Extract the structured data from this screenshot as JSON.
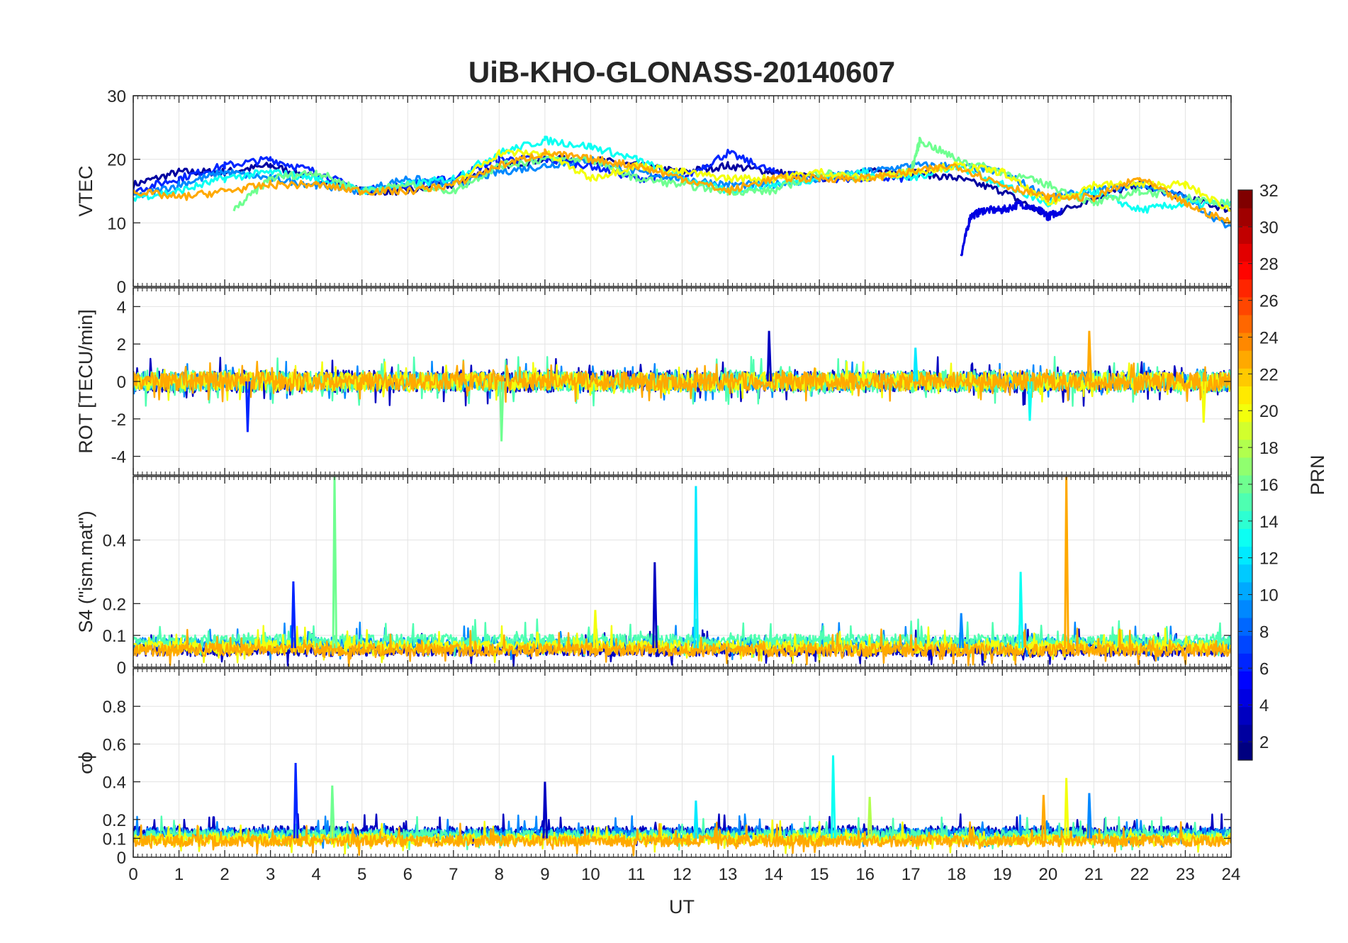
{
  "chart_data": {
    "type": "line",
    "title": "UiB-KHO-GLONASS-20140607",
    "xlabel": "UT",
    "xlim": [
      0,
      24
    ],
    "xticks": [
      "0",
      "1",
      "2",
      "3",
      "4",
      "5",
      "6",
      "7",
      "8",
      "9",
      "10",
      "11",
      "12",
      "13",
      "14",
      "15",
      "16",
      "17",
      "18",
      "19",
      "20",
      "21",
      "22",
      "23",
      "24"
    ],
    "grid": true,
    "colorbar": {
      "label": "PRN",
      "range": [
        1,
        32
      ],
      "colormap": "jet",
      "ticks": [
        "2",
        "4",
        "6",
        "8",
        "10",
        "12",
        "14",
        "16",
        "18",
        "20",
        "22",
        "24",
        "26",
        "28",
        "30",
        "32"
      ]
    },
    "panels": [
      {
        "ylabel": "VTEC",
        "ylim": [
          0,
          30
        ],
        "yticks": [
          "0",
          "10",
          "20",
          "30"
        ],
        "series": [
          {
            "prn": 2,
            "x": [
              0,
              1,
              2,
              3,
              4,
              5,
              6,
              7,
              8,
              9,
              10,
              11,
              12,
              13,
              14,
              15,
              16,
              17,
              18,
              19,
              20,
              21,
              22,
              23,
              24
            ],
            "y": [
              16,
              18,
              18,
              19,
              17,
              15,
              15,
              16,
              19,
              20,
              20,
              19,
              18,
              19,
              18,
              17,
              18,
              18,
              17,
              15,
              11,
              14,
              16,
              14,
              12
            ]
          },
          {
            "prn": 4,
            "x": [
              18.1,
              18.3,
              18.6,
              19,
              19.4,
              19.8,
              20,
              20.3
            ],
            "y": [
              5,
              11,
              12,
              12,
              13,
              12,
              11,
              12
            ]
          },
          {
            "prn": 6,
            "x": [
              0,
              1,
              2,
              3,
              4,
              5,
              6,
              7,
              8,
              9,
              10,
              11,
              12,
              13,
              14,
              15,
              16,
              17
            ],
            "y": [
              15,
              17,
              19,
              20,
              18,
              15,
              16,
              17,
              20,
              20,
              19,
              17,
              17,
              21,
              18,
              17,
              17,
              17
            ]
          },
          {
            "prn": 9,
            "x": [
              0,
              1,
              2,
              3,
              4,
              5,
              6,
              7,
              8,
              9,
              10,
              11,
              12,
              13,
              14,
              15,
              16,
              17,
              18,
              19,
              20,
              21,
              22,
              23,
              24
            ],
            "y": [
              14,
              16,
              18,
              17,
              16,
              15,
              17,
              16,
              18,
              19,
              20,
              18,
              17,
              16,
              16,
              17,
              18,
              19,
              19,
              18,
              14,
              15,
              16,
              14,
              9
            ]
          },
          {
            "prn": 13,
            "x": [
              0,
              1,
              2,
              3,
              4,
              5,
              6,
              7,
              8,
              9,
              10,
              11,
              12,
              13,
              14,
              15,
              16,
              17,
              18,
              19,
              20,
              21,
              22,
              23,
              24
            ],
            "y": [
              14,
              15,
              17,
              18,
              17,
              15,
              16,
              17,
              21,
              23,
              22,
              20,
              17,
              15,
              16,
              17,
              18,
              17,
              19,
              16,
              13,
              15,
              12,
              13,
              13
            ]
          },
          {
            "prn": 16,
            "x": [
              2.2,
              3,
              4,
              5,
              6,
              7,
              8,
              9,
              10,
              11,
              12,
              13,
              14,
              15,
              16,
              17,
              17.2,
              18,
              19,
              20,
              21,
              22,
              23,
              24
            ],
            "y": [
              12,
              17,
              18,
              15,
              16,
              15,
              19,
              20,
              20,
              17,
              16,
              15,
              15,
              18,
              17,
              18,
              23,
              20,
              18,
              16,
              13,
              15,
              14,
              13
            ]
          },
          {
            "prn": 20,
            "x": [
              7,
              8,
              9,
              10,
              11,
              12,
              13,
              14,
              15,
              16,
              17,
              18,
              19,
              20,
              21,
              22,
              23,
              24
            ],
            "y": [
              16,
              21,
              21,
              17,
              19,
              18,
              17,
              17,
              18,
              17,
              18,
              19,
              18,
              13,
              16,
              16,
              16,
              12
            ]
          },
          {
            "prn": 23,
            "x": [
              0,
              1,
              2,
              3,
              4,
              5,
              6,
              7,
              8,
              9,
              10,
              11,
              12,
              13,
              14,
              15,
              16,
              17,
              18,
              19,
              20,
              21,
              22,
              23,
              24
            ],
            "y": [
              15,
              14,
              15,
              16,
              16,
              15,
              15,
              16,
              19,
              21,
              20,
              19,
              17,
              15,
              17,
              17,
              17,
              18,
              19,
              16,
              14,
              14,
              17,
              13,
              10
            ]
          }
        ]
      },
      {
        "ylabel": "ROT [TECU/min]",
        "ylim": [
          -5,
          5
        ],
        "yticks": [
          "-4",
          "-2",
          "0",
          "2",
          "4"
        ],
        "spikes": [
          [
            2.5,
            -2.7
          ],
          [
            8.05,
            -3.2
          ],
          [
            13.9,
            2.7
          ],
          [
            17.1,
            1.8
          ],
          [
            19.6,
            -2.1
          ],
          [
            20.9,
            2.7
          ],
          [
            23.4,
            -2.2
          ]
        ],
        "series": [
          {
            "prn": 3,
            "amplitude": 0.6
          },
          {
            "prn": 9,
            "amplitude": 0.5
          },
          {
            "prn": 15,
            "amplitude": 0.6
          },
          {
            "prn": 20,
            "amplitude": 0.5
          },
          {
            "prn": 23,
            "amplitude": 0.5
          }
        ]
      },
      {
        "ylabel": "S4 (\"ism.mat\")",
        "ylim": [
          0,
          0.6
        ],
        "yticks": [
          "0",
          "0.1",
          "0.2",
          "0.4"
        ],
        "spikes": [
          [
            3.5,
            0.27
          ],
          [
            4.4,
            0.6
          ],
          [
            11.4,
            0.33
          ],
          [
            12.3,
            0.57
          ],
          [
            19.4,
            0.3
          ],
          [
            20.4,
            0.6
          ],
          [
            10.1,
            0.18
          ],
          [
            18.1,
            0.17
          ]
        ],
        "series": [
          {
            "prn": 3,
            "baseline": 0.05
          },
          {
            "prn": 9,
            "baseline": 0.07
          },
          {
            "prn": 15,
            "baseline": 0.08
          },
          {
            "prn": 20,
            "baseline": 0.06
          },
          {
            "prn": 23,
            "baseline": 0.05
          }
        ]
      },
      {
        "ylabel": "σϕ",
        "ylim": [
          0,
          1
        ],
        "yticks": [
          "0",
          "0.1",
          "0.2",
          "0.4",
          "0.6",
          "0.8"
        ],
        "spikes": [
          [
            3.55,
            0.5
          ],
          [
            4.35,
            0.38
          ],
          [
            9.0,
            0.4
          ],
          [
            12.3,
            0.3
          ],
          [
            15.3,
            0.54
          ],
          [
            19.9,
            0.33
          ],
          [
            20.4,
            0.42
          ],
          [
            20.9,
            0.34
          ],
          [
            16.1,
            0.32
          ]
        ],
        "series": [
          {
            "prn": 3,
            "baseline": 0.13
          },
          {
            "prn": 9,
            "baseline": 0.12
          },
          {
            "prn": 15,
            "baseline": 0.11
          },
          {
            "prn": 20,
            "baseline": 0.09
          },
          {
            "prn": 23,
            "baseline": 0.08
          }
        ]
      }
    ]
  }
}
